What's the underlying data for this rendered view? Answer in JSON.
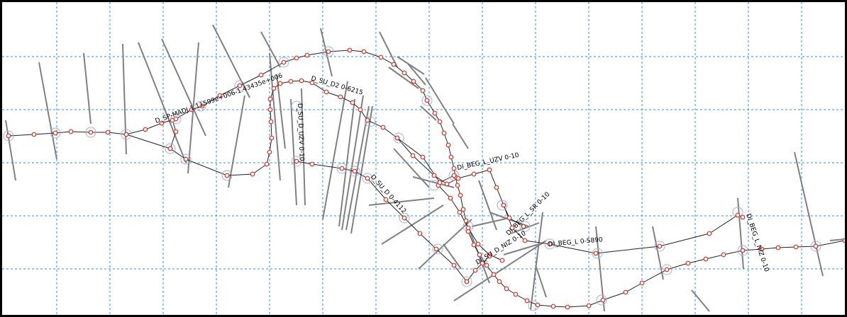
{
  "labels": {
    "sp_madj": "D_SP-MADJ 1.11599e+006-1.43435e+006",
    "su_d2": "D_SU_D2 0-6215",
    "su_d_uzv": "D_SU_D_UZV 0-10",
    "beg_l_uzv": "DI_BEG_L_UZV 0-10",
    "su_d": "D_SU_D 0-4112",
    "beg_sr": "DI_BEG_L_SR 0-10",
    "su_d_niz": "DI_SU_D_NIZ 0-10",
    "beg_l": "DI_BEG_L 0-5890",
    "beg_l_niz": "DI_BEG_L_NIZ 0-10"
  },
  "colors": {
    "grid": "#3a8fd8",
    "cross_section": "#808080",
    "network_line": "#222222",
    "vertex": "#e03020",
    "node_ring": "#9fb3d6",
    "frame": "#000000"
  }
}
